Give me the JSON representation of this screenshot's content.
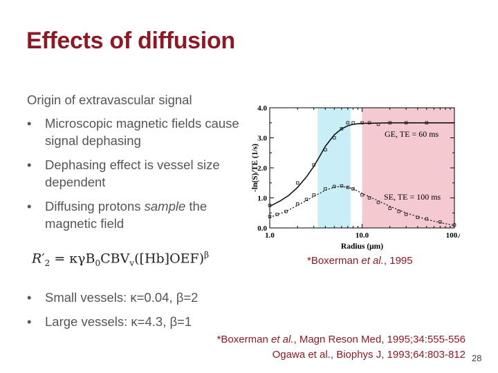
{
  "slide": {
    "title": "Effects of diffusion",
    "subheading": "Origin of extravascular signal",
    "bullets_top": [
      {
        "marker": "•",
        "text_before": "Microscopic magnetic fields cause signal dephasing",
        "em": "",
        "text_after": ""
      },
      {
        "marker": "•",
        "text_before": "Dephasing effect is vessel size dependent",
        "em": "",
        "text_after": ""
      },
      {
        "marker": "•",
        "text_before": "Diffusing protons ",
        "em": "sample",
        "text_after": " the magnetic field"
      }
    ],
    "equation": {
      "lhs": "R′",
      "lhs_sub": "2",
      "rhs_main": "= κγB",
      "rhs_sub0": "0",
      "rhs_cbv": "CBV",
      "rhs_sub_v": "v",
      "rhs_bracket": "([Hb]OEF)",
      "rhs_sup": "β"
    },
    "bullets_bottom": [
      {
        "marker": "•",
        "text": "Small vessels: κ=0.04, β=2"
      },
      {
        "marker": "•",
        "text": "Large vessels: κ=4.3, β=1"
      }
    ],
    "figure_citation": {
      "prefix": "*Boxerman ",
      "em": "et al.",
      "suffix": ", 1995"
    },
    "references": [
      {
        "prefix": "*Boxerman ",
        "em": "et al.",
        "suffix": ", Magn Reson Med, 1995;34:555-556"
      },
      {
        "text": "Ogawa et al., Biophys J, 1993;64:803-812"
      }
    ],
    "page_number": "28"
  },
  "chart_data": {
    "type": "scatter",
    "xlabel": "Radius (μm)",
    "ylabel": "-ln(S)/TE   (1/s)",
    "x_scale": "log",
    "xlim": [
      1.0,
      100.0
    ],
    "ylim": [
      0.0,
      4.0
    ],
    "x_tick_labels": [
      "1.0",
      "10.0",
      "100.0"
    ],
    "y_tick_labels": [
      "0.0",
      "1.0",
      "2.0",
      "3.0",
      "4.0"
    ],
    "highlight_bands": [
      {
        "from": 3.3,
        "to": 7.5,
        "color": "#c9eef8"
      },
      {
        "from": 10.0,
        "to": 100.0,
        "color": "#f4c9d0"
      }
    ],
    "series": [
      {
        "name": "GE, TE = 60 ms",
        "line": "solid",
        "curve_x": [
          1.0,
          1.3,
          1.6,
          2.0,
          2.5,
          3.0,
          3.5,
          4.0,
          5.0,
          6.0,
          7.0,
          8.0,
          10.0,
          15.0,
          20.0,
          30.0,
          50.0,
          70.0,
          100.0
        ],
        "curve_y": [
          0.72,
          0.9,
          1.08,
          1.35,
          1.7,
          2.05,
          2.4,
          2.72,
          3.1,
          3.3,
          3.4,
          3.45,
          3.48,
          3.49,
          3.5,
          3.5,
          3.5,
          3.5,
          3.5
        ],
        "points_x": [
          1.0,
          2.0,
          3.0,
          4.0,
          5.0,
          6.0,
          7.0,
          8.0,
          10.0,
          12.0,
          15.0,
          20.0,
          30.0,
          50.0
        ],
        "points_y": [
          0.75,
          1.5,
          2.1,
          2.6,
          3.0,
          3.3,
          3.5,
          3.5,
          3.5,
          3.5,
          3.45,
          3.5,
          3.5,
          3.5
        ]
      },
      {
        "name": "SE, TE = 100 ms",
        "line": "dotted",
        "curve_x": [
          1.0,
          1.5,
          2.0,
          3.0,
          4.0,
          5.0,
          6.0,
          7.0,
          8.0,
          10.0,
          15.0,
          20.0,
          30.0,
          50.0,
          70.0,
          100.0
        ],
        "curve_y": [
          0.35,
          0.55,
          0.75,
          1.05,
          1.25,
          1.36,
          1.38,
          1.35,
          1.3,
          1.15,
          0.9,
          0.72,
          0.5,
          0.28,
          0.18,
          0.08
        ],
        "points_x": [
          1.0,
          1.2,
          1.5,
          2.0,
          2.5,
          3.0,
          4.0,
          5.0,
          6.0,
          7.0,
          8.0,
          10.0,
          12.0,
          15.0,
          20.0,
          25.0,
          30.0,
          40.0,
          50.0,
          70.0,
          100.0
        ],
        "points_y": [
          0.38,
          0.45,
          0.55,
          0.8,
          0.95,
          1.1,
          1.3,
          1.38,
          1.4,
          1.35,
          1.3,
          1.1,
          1.0,
          0.85,
          0.65,
          0.55,
          0.45,
          0.35,
          0.3,
          0.2,
          0.1
        ]
      }
    ]
  }
}
